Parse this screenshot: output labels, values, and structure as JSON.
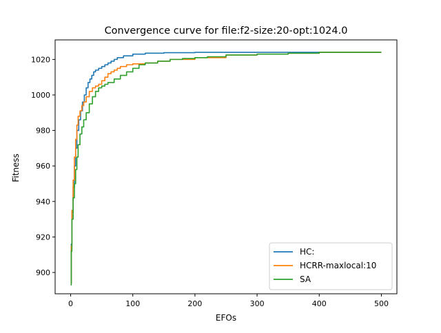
{
  "chart_data": {
    "type": "line",
    "title": "Convergence curve for file:f2-size:20-opt:1024.0",
    "xlabel": "EFOs",
    "ylabel": "Fitness",
    "xlim": [
      -25,
      525
    ],
    "ylim": [
      888,
      1031
    ],
    "xticks": [
      0,
      100,
      200,
      300,
      400,
      500
    ],
    "yticks": [
      900,
      920,
      940,
      960,
      980,
      1000,
      1020
    ],
    "grid": false,
    "legend_position": "lower-right",
    "series": [
      {
        "name": "HC:",
        "color": "#1f77b4",
        "points": [
          [
            0,
            894
          ],
          [
            1,
            916
          ],
          [
            2,
            934
          ],
          [
            4,
            948
          ],
          [
            6,
            960
          ],
          [
            8,
            970
          ],
          [
            10,
            980
          ],
          [
            13,
            986
          ],
          [
            16,
            991
          ],
          [
            19,
            996
          ],
          [
            22,
            1000
          ],
          [
            25,
            1004
          ],
          [
            28,
            1007
          ],
          [
            31,
            1009
          ],
          [
            34,
            1011
          ],
          [
            37,
            1013
          ],
          [
            40,
            1014
          ],
          [
            45,
            1015
          ],
          [
            50,
            1016
          ],
          [
            55,
            1017
          ],
          [
            60,
            1018
          ],
          [
            65,
            1019
          ],
          [
            70,
            1020
          ],
          [
            75,
            1021
          ],
          [
            85,
            1022
          ],
          [
            100,
            1023
          ],
          [
            120,
            1023.5
          ],
          [
            150,
            1023.8
          ],
          [
            200,
            1024
          ],
          [
            500,
            1024
          ]
        ]
      },
      {
        "name": "HCRR-maxlocal:10",
        "color": "#ff7f0e",
        "points": [
          [
            0,
            894
          ],
          [
            1,
            915
          ],
          [
            2,
            935
          ],
          [
            4,
            952
          ],
          [
            6,
            965
          ],
          [
            8,
            975
          ],
          [
            10,
            983
          ],
          [
            12,
            988
          ],
          [
            15,
            991
          ],
          [
            18,
            994
          ],
          [
            21,
            996
          ],
          [
            25,
            999
          ],
          [
            30,
            1002
          ],
          [
            35,
            1004
          ],
          [
            40,
            1005
          ],
          [
            45,
            1006
          ],
          [
            50,
            1008
          ],
          [
            55,
            1010
          ],
          [
            60,
            1012
          ],
          [
            65,
            1013
          ],
          [
            70,
            1014
          ],
          [
            75,
            1015
          ],
          [
            80,
            1016
          ],
          [
            90,
            1017
          ],
          [
            100,
            1017.5
          ],
          [
            120,
            1018
          ],
          [
            140,
            1019
          ],
          [
            160,
            1020
          ],
          [
            200,
            1021
          ],
          [
            250,
            1022.5
          ],
          [
            300,
            1023
          ],
          [
            350,
            1023.5
          ],
          [
            400,
            1024
          ],
          [
            500,
            1024
          ]
        ]
      },
      {
        "name": "SA",
        "color": "#2ca02c",
        "points": [
          [
            0,
            893
          ],
          [
            1,
            912
          ],
          [
            2,
            930
          ],
          [
            4,
            942
          ],
          [
            6,
            950
          ],
          [
            8,
            958
          ],
          [
            10,
            965
          ],
          [
            12,
            972
          ],
          [
            15,
            978
          ],
          [
            18,
            982
          ],
          [
            21,
            986
          ],
          [
            25,
            990
          ],
          [
            30,
            995
          ],
          [
            35,
            999
          ],
          [
            40,
            1002
          ],
          [
            45,
            1004
          ],
          [
            50,
            1005
          ],
          [
            55,
            1006
          ],
          [
            60,
            1007
          ],
          [
            70,
            1009
          ],
          [
            80,
            1011
          ],
          [
            90,
            1013
          ],
          [
            100,
            1015
          ],
          [
            110,
            1017
          ],
          [
            120,
            1018
          ],
          [
            140,
            1019
          ],
          [
            160,
            1020
          ],
          [
            180,
            1020.5
          ],
          [
            200,
            1021
          ],
          [
            220,
            1021.5
          ],
          [
            250,
            1022.5
          ],
          [
            300,
            1023
          ],
          [
            350,
            1023.5
          ],
          [
            400,
            1024
          ],
          [
            500,
            1024
          ]
        ]
      }
    ]
  }
}
